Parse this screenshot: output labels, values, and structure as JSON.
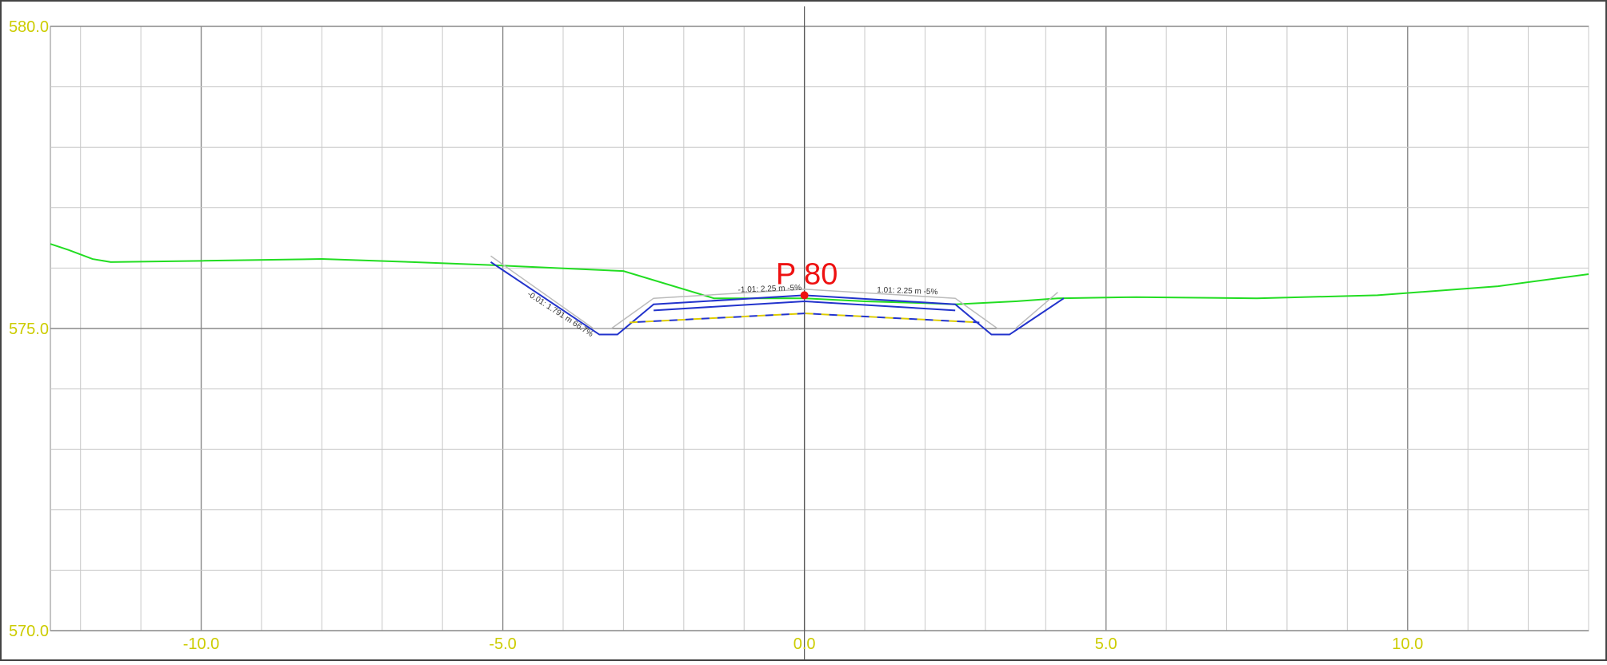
{
  "chart_data": {
    "type": "line",
    "station_label": "P 80",
    "x_ticks": [
      -10.0,
      -5.0,
      0.0,
      5.0,
      10.0
    ],
    "x_tick_labels": [
      "-10.0",
      "-5.0",
      "0.0",
      "5.0",
      "10.0"
    ],
    "y_ticks": [
      570.0,
      575.0,
      580.0
    ],
    "y_tick_labels": [
      "570.0",
      "575.0",
      "580.0"
    ],
    "xlim": [
      -12.5,
      13.0
    ],
    "ylim": [
      570.0,
      580.0
    ],
    "grid": true,
    "annotations": [
      {
        "text": "-0.01: 1.791 m 66.7%",
        "x": -4.6,
        "y": 575.55
      },
      {
        "text": "-1.01: 2.25 m -5%",
        "x": -1.1,
        "y": 575.6
      },
      {
        "text": "1.01: 2.25 m -5%",
        "x": 1.2,
        "y": 575.6
      }
    ],
    "series": [
      {
        "color": "#22dd22",
        "x": [
          -12.5,
          -12.2,
          -11.8,
          -11.5,
          -10.0,
          -8.0,
          -6.5,
          -5.2,
          -3.0,
          -1.5,
          -0.5,
          0.0,
          1.0,
          2.0,
          2.5,
          3.5,
          4.2,
          5.5,
          7.5,
          9.5,
          11.5,
          13.0
        ],
        "y": [
          576.4,
          576.3,
          576.15,
          576.1,
          576.12,
          576.15,
          576.1,
          576.05,
          575.95,
          575.5,
          575.5,
          575.5,
          575.45,
          575.42,
          575.4,
          575.45,
          575.5,
          575.52,
          575.5,
          575.55,
          575.7,
          575.9
        ]
      },
      {
        "color": "#2233cc",
        "x": [
          -5.2,
          -3.4,
          -3.1,
          -2.5,
          0.0,
          2.5,
          3.1,
          3.4,
          4.3
        ],
        "y": [
          576.1,
          574.9,
          574.9,
          575.4,
          575.55,
          575.4,
          574.9,
          574.9,
          575.5
        ]
      },
      {
        "color": "#2233cc",
        "x": [
          -2.5,
          0.0,
          2.5
        ],
        "y": [
          575.3,
          575.45,
          575.3
        ]
      },
      {
        "color": "#ddcc00",
        "x": [
          -2.9,
          0.0,
          2.9
        ],
        "y": [
          575.1,
          575.25,
          575.1
        ]
      },
      {
        "color": "#bbbbbb",
        "x": [
          -5.2,
          -3.5,
          -3.2,
          -2.5,
          0.0,
          2.5,
          3.2,
          3.5,
          4.2
        ],
        "y": [
          576.2,
          575.0,
          575.0,
          575.5,
          575.65,
          575.5,
          575.0,
          575.0,
          575.6
        ]
      }
    ],
    "station_point": {
      "x": 0.0,
      "y": 575.55,
      "color": "#ee1111"
    },
    "colors": {
      "tick_labels": "#cccc00",
      "station_label": "#ee1111",
      "grid_minor": "#c8c8c8",
      "grid_major": "#888888"
    }
  }
}
